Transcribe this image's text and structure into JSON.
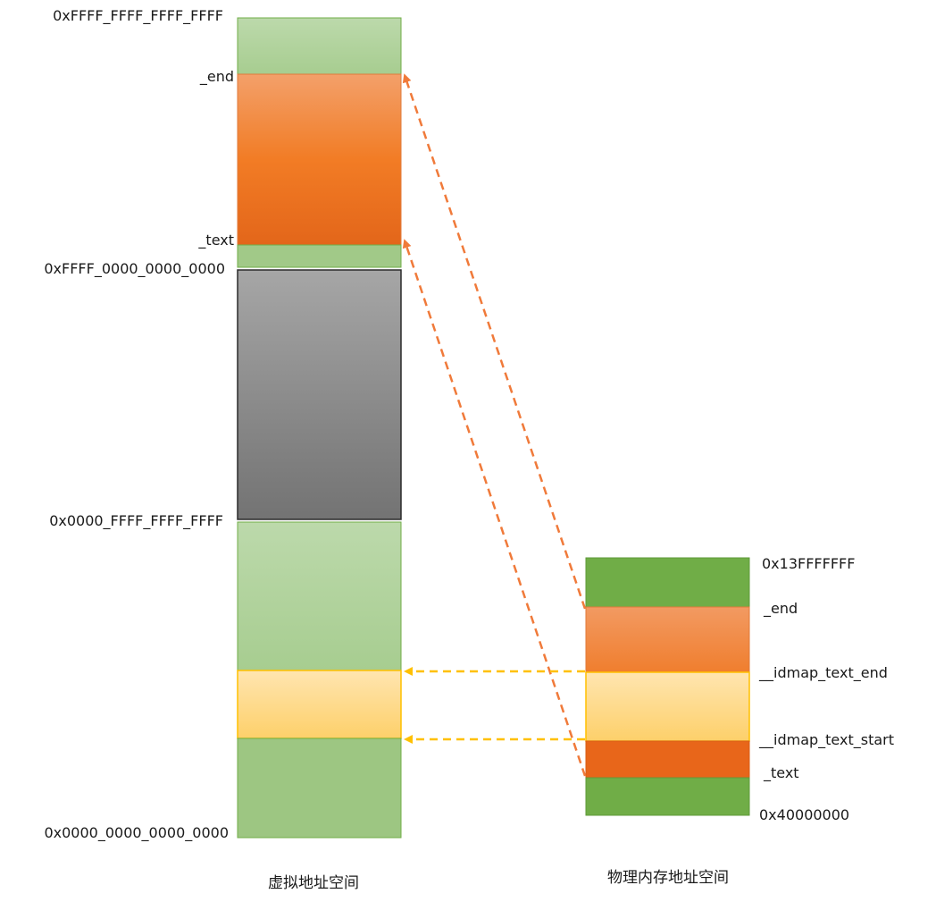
{
  "virtual_space": {
    "title": "虚拟地址空间",
    "labels": {
      "top": "0xFFFF_FFFF_FFFF_FFFF",
      "end": "_end",
      "text": "_text",
      "kernel_base": "0xFFFF_0000_0000_0000",
      "user_top": "0x0000_FFFF_FFFF_FFFF",
      "bottom": "0x0000_0000_0000_0000"
    }
  },
  "physical_space": {
    "title": "物理内存地址空间",
    "labels": {
      "top": "0x13FFFFFFF",
      "end": "_end",
      "idmap_end": "__idmap_text_end",
      "idmap_start": "__idmap_text_start",
      "text": "_text",
      "bottom": "0x40000000"
    }
  },
  "colors": {
    "green_light": "#b8d7a7",
    "green_mid": "#9cc57f",
    "green_dark": "#70ad47",
    "orange_light": "#f4a46e",
    "orange": "#f07a22",
    "orange_dark": "#e5671a",
    "yellow_light": "#ffe4a8",
    "yellow": "#fdd26b",
    "gray_light": "#a5a5a5",
    "gray_dark": "#757575",
    "arrow_orange": "#f07a3a",
    "arrow_yellow": "#ffc000"
  }
}
